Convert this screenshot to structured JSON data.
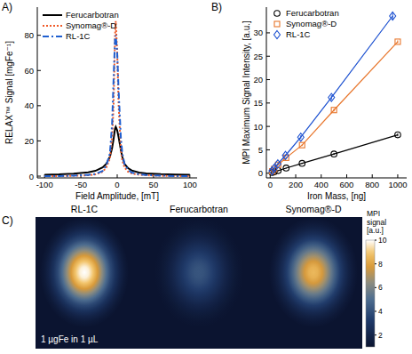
{
  "chart_data": [
    {
      "type": "line",
      "panel": "A)",
      "xlabel": "Field Amplitude, [mT]",
      "ylabel": "RELAX™ Signal [mgFe⁻¹]",
      "x": [
        -100,
        -80,
        -60,
        -40,
        -30,
        -20,
        -15,
        -10,
        -7,
        -5,
        -3,
        -2,
        0,
        2,
        5,
        7,
        10,
        15,
        20,
        30,
        40,
        60,
        80,
        100
      ],
      "series": [
        {
          "name": "Ferucarbotran",
          "color": "#000000",
          "line_style": "solid",
          "values": [
            0.8,
            1.0,
            1.4,
            2.2,
            3.0,
            5,
            7,
            11,
            16,
            21,
            27,
            28,
            26,
            22,
            15,
            11,
            7,
            4.5,
            3.2,
            2,
            1.5,
            1.1,
            0.9,
            0.8
          ]
        },
        {
          "name": "Synomag®-D",
          "color": "#f05a28",
          "line_style": "dotted",
          "values": [
            0,
            0,
            0.2,
            0.5,
            1,
            2.5,
            5,
            10,
            22,
            40,
            80,
            88,
            70,
            40,
            15,
            9,
            5,
            2.5,
            1.5,
            0.8,
            0.5,
            0.2,
            0,
            0
          ]
        },
        {
          "name": "RL-1C",
          "color": "#1f5fd0",
          "line_style": "dashdot",
          "values": [
            0,
            0,
            0.3,
            0.7,
            1.2,
            3,
            6,
            13,
            30,
            55,
            78,
            80,
            70,
            48,
            22,
            13,
            7,
            3.5,
            2,
            1,
            0.6,
            0.3,
            0,
            0
          ]
        }
      ],
      "xlim": [
        -110,
        110
      ],
      "xticks": [
        -100,
        -50,
        0,
        50,
        100
      ],
      "ylim": [
        -1,
        96
      ],
      "yticks": [
        0,
        20,
        40,
        60,
        80
      ],
      "legend": "upper left"
    },
    {
      "type": "scatter",
      "panel": "B)",
      "xlabel": "Iron Mass, [ng]",
      "ylabel": "MPI Maximum Signal Intensity, [a.u.]",
      "series": [
        {
          "name": "Ferucarbotran",
          "color": "#000000",
          "marker": "circle",
          "line_style": "solid",
          "x": [
            15.6,
            31,
            62.5,
            125,
            250,
            500,
            1000
          ],
          "values": [
            0.15,
            0.3,
            0.55,
            1.1,
            2.1,
            4.1,
            8.2
          ],
          "errors": [
            0.05,
            0.05,
            0.05,
            0.1,
            0.1,
            0.2,
            0.3
          ]
        },
        {
          "name": "Synomag®-D",
          "color": "#e8752a",
          "marker": "square",
          "line_style": "solid",
          "x": [
            15.6,
            31,
            62.5,
            125,
            250,
            500,
            1000
          ],
          "values": [
            0.4,
            0.9,
            1.8,
            3.3,
            6.0,
            13.5,
            28.1
          ],
          "errors": [
            0.05,
            0.1,
            0.1,
            0.15,
            0.2,
            0.3,
            0.3
          ]
        },
        {
          "name": "RL-1C",
          "color": "#1a4fd0",
          "marker": "diamond",
          "line_style": "solid",
          "x": [
            15,
            30,
            60,
            120,
            240,
            480,
            960
          ],
          "values": [
            0.5,
            1.0,
            2.0,
            3.8,
            7.7,
            16.2,
            33.6
          ],
          "errors": [
            0.1,
            0.1,
            0.15,
            0.2,
            0.4,
            0.5,
            0.8
          ]
        }
      ],
      "xlim": [
        -30,
        1070
      ],
      "xticks": [
        0,
        200,
        400,
        600,
        800,
        1000
      ],
      "ylim": [
        -1,
        35.5
      ],
      "yticks": [
        0,
        5,
        10,
        15,
        20,
        25,
        30
      ],
      "legend": "upper left"
    },
    {
      "type": "heatmap",
      "panel": "C)",
      "categories": [
        "RL-1C",
        "Ferucarbotran",
        "Synomag®-D"
      ],
      "values": [
        10,
        4.2,
        8.6
      ],
      "annotation": "1 µgFe in 1 µL",
      "colorbar_label": [
        "MPI",
        "signal",
        "[a.u.]"
      ],
      "colorbar_range": [
        1,
        10
      ],
      "colorbar_ticks": [
        2,
        4,
        6,
        8,
        10
      ]
    }
  ]
}
